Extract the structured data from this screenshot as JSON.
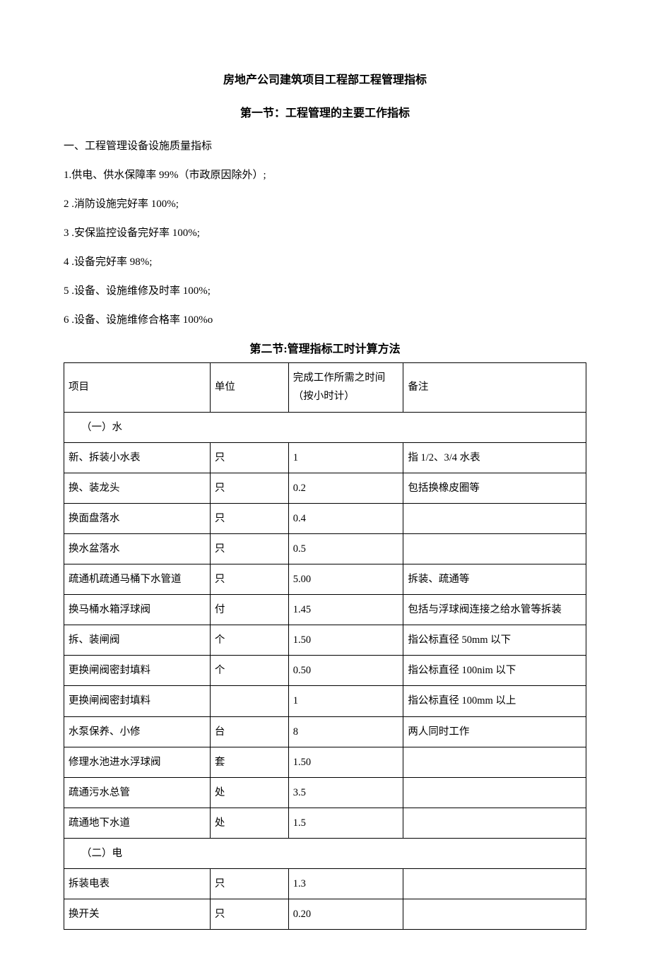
{
  "title": "房地产公司建筑项目工程部工程管理指标",
  "section1": {
    "heading": "第一节：工程管理的主要工作指标",
    "subheading": "一、工程管理设备设施质量指标",
    "items": [
      "1.供电、供水保障率 99%（市政原因除外）;",
      "2 .消防设施完好率 100%;",
      "3 .安保监控设备完好率 100%;",
      "4 .设备完好率 98%;",
      "5 .设备、设施维修及时率 100%;",
      "6 .设备、设施维修合格率 100%o"
    ]
  },
  "section2": {
    "heading": "第二节:管理指标工时计算方法",
    "header": {
      "c1": "项目",
      "c2": "单位",
      "c3": "完成工作所需之时间（按小时计）",
      "c4": "备注"
    },
    "group1": "（一）水",
    "rows1": [
      {
        "c1": "新、拆装小水表",
        "c2": "只",
        "c3": "1",
        "c4": "指 1/2、3/4 水表"
      },
      {
        "c1": "换、装龙头",
        "c2": "只",
        "c3": "0.2",
        "c4": "包括换橡皮圈等"
      },
      {
        "c1": "换面盘落水",
        "c2": "只",
        "c3": "0.4",
        "c4": ""
      },
      {
        "c1": "换水盆落水",
        "c2": "只",
        "c3": "0.5",
        "c4": ""
      },
      {
        "c1": "疏通机疏通马桶下水管道",
        "c2": "只",
        "c3": "5.00",
        "c4": "拆装、疏通等"
      },
      {
        "c1": "换马桶水箱浮球阀",
        "c2": "付",
        "c3": "1.45",
        "c4": "包括与浮球阀连接之给水管等拆装"
      },
      {
        "c1": "拆、装闸阀",
        "c2": "个",
        "c3": "1.50",
        "c4": "指公标直径 50mm 以下"
      },
      {
        "c1": "更换闸阀密封填料",
        "c2": "个",
        "c3": "0.50",
        "c4": "指公标直径 100nim 以下"
      },
      {
        "c1": "更换闸阀密封填料",
        "c2": "",
        "c3": "1",
        "c4": "指公标直径 100mm 以上"
      },
      {
        "c1": "水泵保养、小修",
        "c2": "台",
        "c3": "8",
        "c4": "两人同时工作"
      },
      {
        "c1": "修理水池进水浮球阀",
        "c2": "套",
        "c3": "1.50",
        "c4": ""
      },
      {
        "c1": "疏通污水总管",
        "c2": "处",
        "c3": "3.5",
        "c4": ""
      },
      {
        "c1": "疏通地下水道",
        "c2": "处",
        "c3": "1.5",
        "c4": ""
      }
    ],
    "group2": "（二）电",
    "rows2": [
      {
        "c1": "拆装电表",
        "c2": "只",
        "c3": "1.3",
        "c4": ""
      },
      {
        "c1": "换开关",
        "c2": "只",
        "c3": "0.20",
        "c4": ""
      }
    ]
  }
}
